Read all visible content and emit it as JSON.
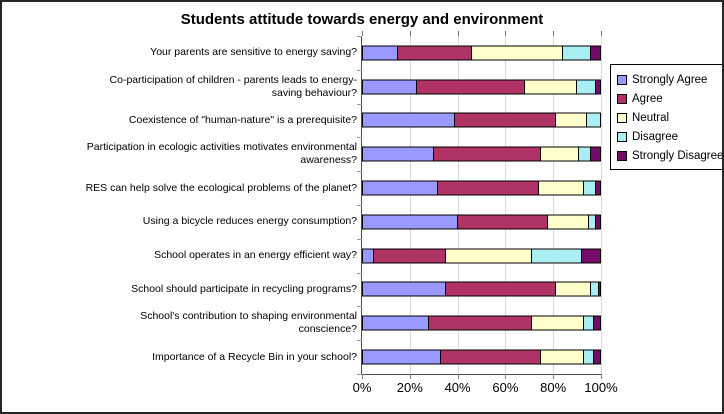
{
  "title": "Students attitude towards energy and environment",
  "legend": {
    "position": "right"
  },
  "chart_data": {
    "type": "bar",
    "subtype": "horizontal-stacked-100pct",
    "title": "Students attitude towards energy and environment",
    "xlabel": "",
    "ylabel": "",
    "xlim": [
      0,
      100
    ],
    "x_ticks": [
      "0%",
      "20%",
      "40%",
      "60%",
      "80%",
      "100%"
    ],
    "grid": "vertical-major-20pct",
    "legend_position": "right",
    "categories": [
      "Your parents are sensitive to energy saving?",
      "Co-participation of children - parents leads to energy-saving behaviour?",
      "Coexistence of \"human-nature\" is a prerequisite?",
      "Participation in ecologic activities motivates environmental awareness?",
      "RES can help solve the ecological problems of the planet?",
      "Using a bicycle reduces energy consumption?",
      "School operates in an energy efficient way?",
      "School should participate in recycling programs?",
      "School's contribution to shaping environmental conscience?",
      "Importance of a Recycle Bin in your school?"
    ],
    "series": [
      {
        "name": "Strongly Agree",
        "color": "#9999FF",
        "values": [
          15,
          23,
          39,
          30,
          32,
          40,
          5,
          35,
          28,
          33
        ]
      },
      {
        "name": "Agree",
        "color": "#B03366",
        "values": [
          31,
          45,
          42,
          45,
          42,
          38,
          30,
          46,
          43,
          42
        ]
      },
      {
        "name": "Neutral",
        "color": "#FFFFCC",
        "values": [
          38,
          22,
          13,
          16,
          19,
          17,
          36,
          15,
          22,
          18
        ]
      },
      {
        "name": "Disagree",
        "color": "#A8EEF2",
        "values": [
          12,
          8,
          6,
          5,
          5,
          3,
          21,
          3,
          4,
          4
        ]
      },
      {
        "name": "Strongly Disagree",
        "color": "#730B67",
        "values": [
          4,
          2,
          0,
          4,
          2,
          2,
          8,
          1,
          3,
          3
        ]
      }
    ]
  }
}
